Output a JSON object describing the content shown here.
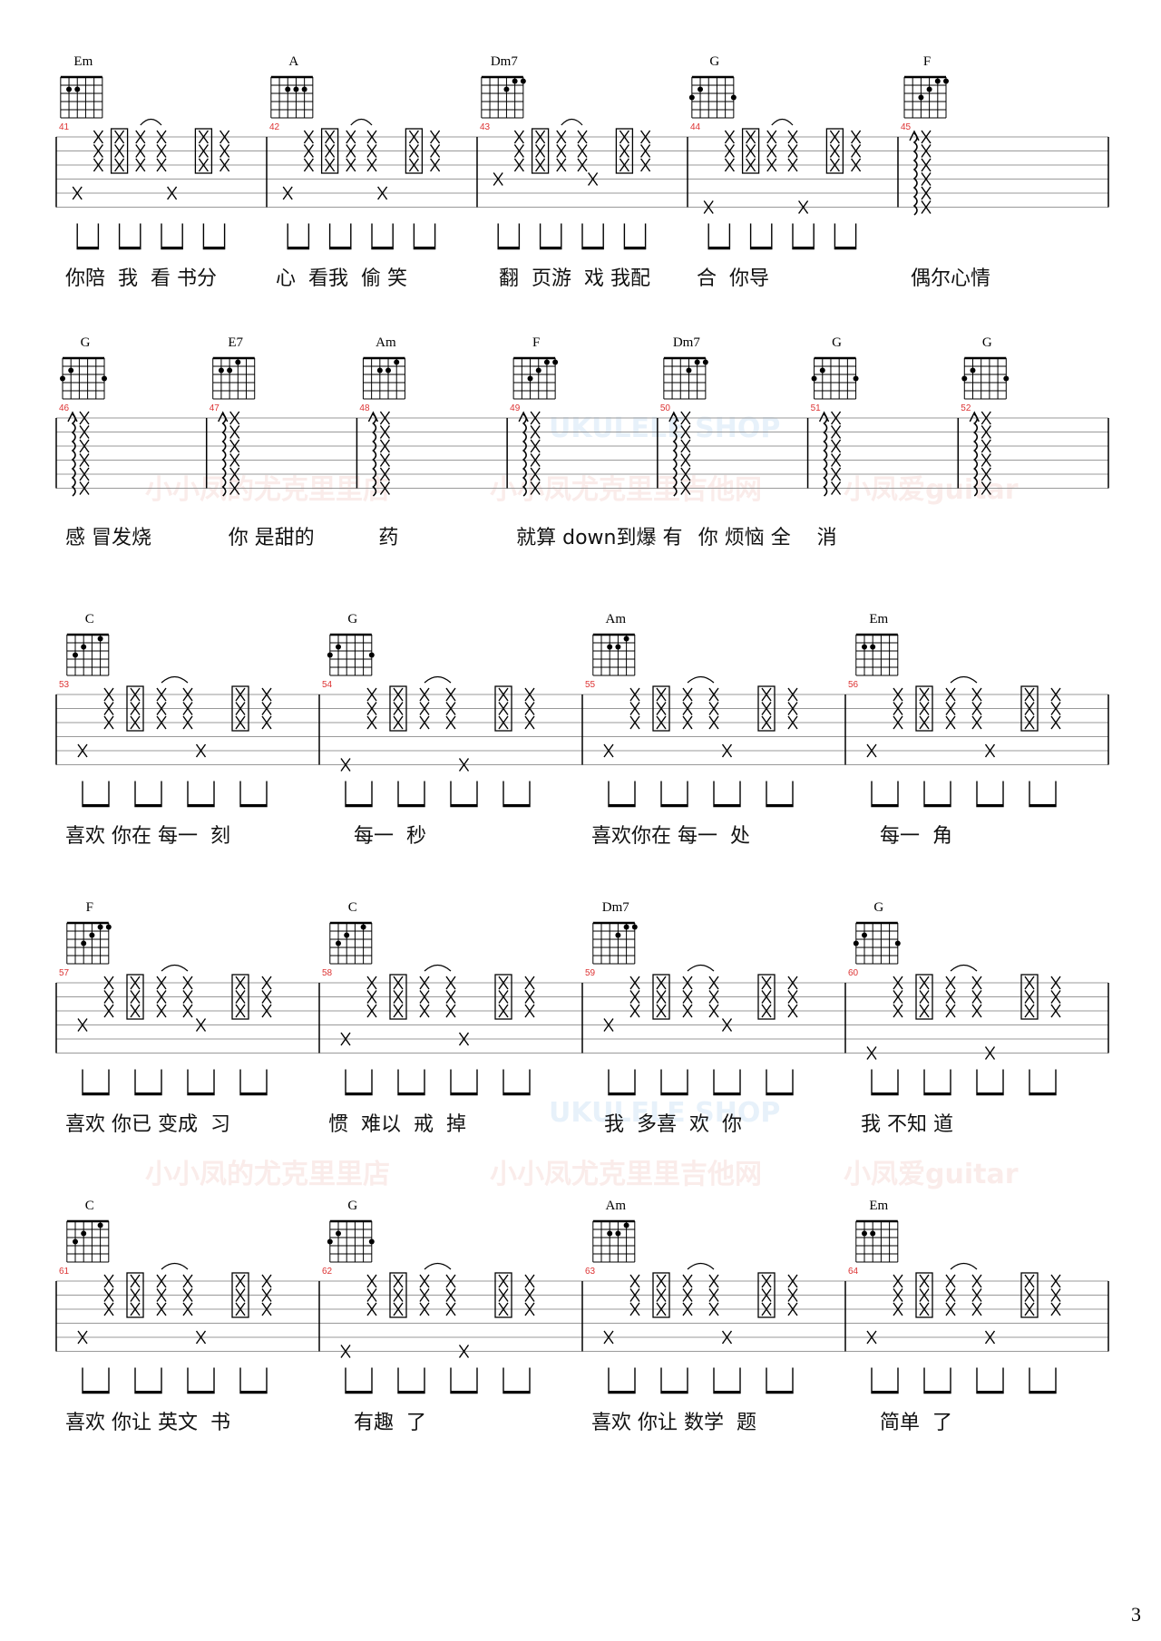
{
  "page_number": "3",
  "watermarks": {
    "taobao": "小小凤的尤克里里店",
    "wechat": "小小凤尤克里里吉他网",
    "weibo": "小凤爱guitar",
    "shop": "UKULELE SHOP",
    "logo": "小凤"
  },
  "chords": {
    "Em": [
      [
        5,
        2
      ],
      [
        4,
        2
      ]
    ],
    "A": [
      [
        4,
        2
      ],
      [
        3,
        2
      ],
      [
        2,
        2
      ]
    ],
    "Dm7": [
      [
        3,
        2
      ],
      [
        2,
        1
      ],
      [
        1,
        1
      ]
    ],
    "G": [
      [
        6,
        3
      ],
      [
        5,
        2
      ],
      [
        1,
        3
      ]
    ],
    "F": [
      [
        4,
        3
      ],
      [
        3,
        2
      ],
      [
        2,
        1
      ],
      [
        1,
        1
      ]
    ],
    "E7": [
      [
        5,
        2
      ],
      [
        4,
        2
      ],
      [
        3,
        1
      ]
    ],
    "Am": [
      [
        4,
        2
      ],
      [
        3,
        2
      ],
      [
        2,
        1
      ]
    ],
    "C": [
      [
        5,
        3
      ],
      [
        4,
        2
      ],
      [
        2,
        1
      ]
    ]
  },
  "rows": [
    {
      "style": "strum",
      "measures": [
        {
          "num": "41",
          "chord": "Em",
          "lyric": "你陪  我  看 书分",
          "bass": 5
        },
        {
          "num": "42",
          "chord": "A",
          "lyric": "心  看我  偷 笑",
          "bass": 5
        },
        {
          "num": "43",
          "chord": "Dm7",
          "lyric": "  翻  页游  戏 我配",
          "bass": 4
        },
        {
          "num": "44",
          "chord": "G",
          "lyric": "合  你导",
          "bass": 6
        },
        {
          "num": "45",
          "chord": "F",
          "lyric": "偶尔心情",
          "bass": 0,
          "arp": true
        }
      ]
    },
    {
      "style": "arp",
      "measures": [
        {
          "num": "46",
          "chord": "G",
          "lyric": "感 冒发烧"
        },
        {
          "num": "47",
          "chord": "E7",
          "lyric": "  你 是甜的"
        },
        {
          "num": "48",
          "chord": "Am",
          "lyric": "  药"
        },
        {
          "num": "49",
          "chord": "F",
          "lyric": "就算 down到爆 有"
        },
        {
          "num": "50",
          "chord": "Dm7",
          "lyric": "     你 烦恼 全"
        },
        {
          "num": "51",
          "chord": "G",
          "lyric": "消"
        },
        {
          "num": "52",
          "chord": "G",
          "lyric": ""
        }
      ]
    },
    {
      "style": "strum",
      "measures": [
        {
          "num": "53",
          "chord": "C",
          "lyric": "喜欢 你在 每一  刻",
          "bass": 5
        },
        {
          "num": "54",
          "chord": "G",
          "lyric": "    每一  秒",
          "bass": 6
        },
        {
          "num": "55",
          "chord": "Am",
          "lyric": "喜欢你在 每一  处",
          "bass": 5
        },
        {
          "num": "56",
          "chord": "Em",
          "lyric": "    每一  角",
          "bass": 5
        }
      ]
    },
    {
      "style": "strum",
      "measures": [
        {
          "num": "57",
          "chord": "F",
          "lyric": "喜欢 你已 变成  习",
          "bass": 4
        },
        {
          "num": "58",
          "chord": "C",
          "lyric": "惯  难以  戒  掉",
          "bass": 5
        },
        {
          "num": "59",
          "chord": "Dm7",
          "lyric": "  我  多喜  欢  你",
          "bass": 4
        },
        {
          "num": "60",
          "chord": "G",
          "lyric": " 我 不知 道",
          "bass": 6
        }
      ]
    },
    {
      "style": "strum",
      "measures": [
        {
          "num": "61",
          "chord": "C",
          "lyric": "喜欢 你让 英文  书",
          "bass": 5
        },
        {
          "num": "62",
          "chord": "G",
          "lyric": "    有趣  了",
          "bass": 6
        },
        {
          "num": "63",
          "chord": "Am",
          "lyric": "喜欢 你让 数学  题",
          "bass": 5
        },
        {
          "num": "64",
          "chord": "Em",
          "lyric": "    简单  了",
          "bass": 5
        }
      ]
    }
  ]
}
